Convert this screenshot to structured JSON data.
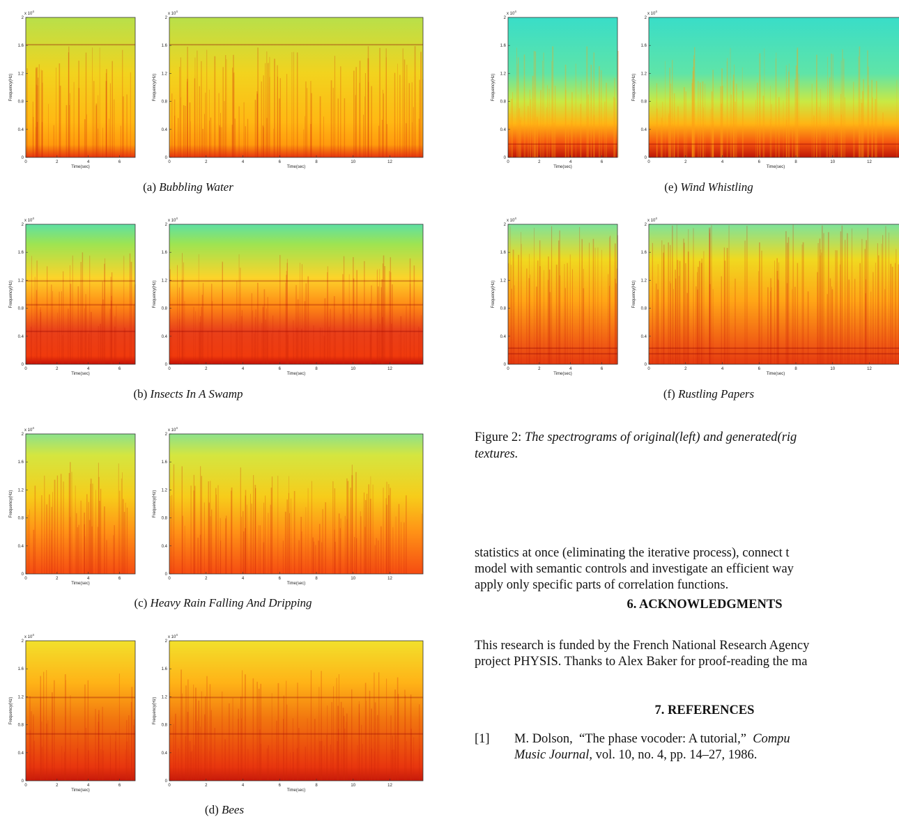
{
  "axes": {
    "ylabel": "Frequency(Hz)",
    "xlabel": "Time(sec)",
    "exponent": "x 10",
    "exponent_power": "4",
    "yticks": [
      "0",
      "0.4",
      "0.8",
      "1.2",
      "1.6",
      "2"
    ],
    "xticks_short": [
      "0",
      "2",
      "4",
      "6"
    ],
    "xticks_long": [
      "0",
      "2",
      "4",
      "6",
      "8",
      "10",
      "12"
    ]
  },
  "subfigures": [
    {
      "letter": "(a)",
      "title": "Bubbling Water"
    },
    {
      "letter": "(b)",
      "title": "Insects In A Swamp"
    },
    {
      "letter": "(c)",
      "title": "Heavy Rain Falling And Dripping"
    },
    {
      "letter": "(d)",
      "title": "Bees"
    },
    {
      "letter": "(e)",
      "title": "Wind Whistling"
    },
    {
      "letter": "(f)",
      "title": "Rustling Papers"
    }
  ],
  "figure_caption": {
    "label": "Figure 2:",
    "line1": "The spectrograms of original(left) and generated(rig",
    "line2": "textures."
  },
  "body_paragraph": [
    "statistics at once (eliminating the iterative process), connect t",
    "model with semantic controls and investigate an efficient way",
    "apply only specific parts of correlation functions."
  ],
  "sections": {
    "acknowledgments_title": "6. ACKNOWLEDGMENTS",
    "acknowledgments_text": [
      "This research is funded by the French National Research Agency",
      "project PHYSIS. Thanks to Alex Baker for proof-reading the ma"
    ],
    "references_title": "7. REFERENCES"
  },
  "reference_1": {
    "num": "[1]",
    "authors": "M. Dolson,",
    "title": "“The phase vocoder: A tutorial,”",
    "venue_a": "Compu",
    "venue_b": "Music Journal",
    "details": ", vol. 10, no. 4, pp. 14–27, 1986."
  }
}
